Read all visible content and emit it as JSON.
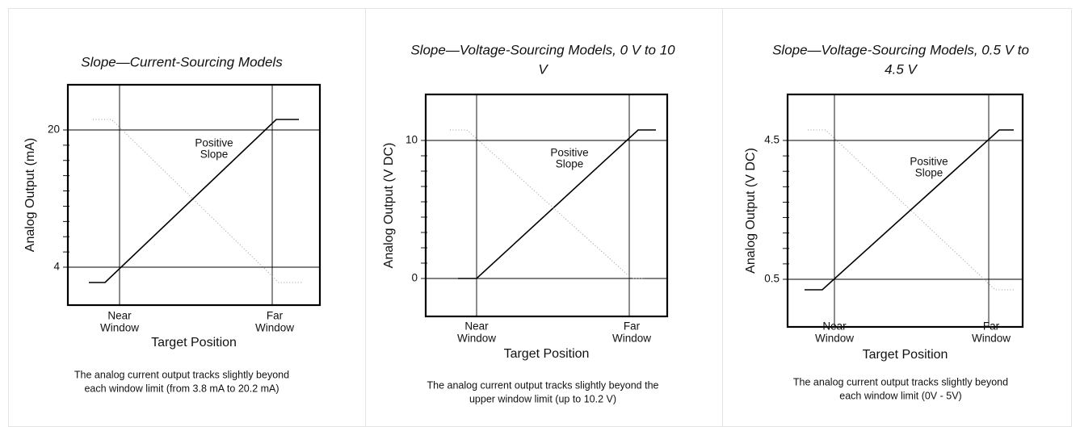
{
  "panels": [
    {
      "title": [
        "Slope—Current-Sourcing Models"
      ],
      "y_axis_label": "Analog Output (mA)",
      "tick_labels": [
        "20",
        "4"
      ],
      "slope_label": [
        "Positive",
        "Slope"
      ],
      "near_label": [
        "Near",
        "Window"
      ],
      "far_label": [
        "Far",
        "Window"
      ],
      "x_axis_label": "Target Position",
      "caption": [
        "The analog current output tracks slightly beyond",
        "each window limit (from 3.8 mA to 20.2 mA)"
      ]
    },
    {
      "title": [
        "Slope—Voltage-Sourcing Models, 0 V to 10",
        "V"
      ],
      "y_axis_label": "Analog Output (V DC)",
      "tick_labels": [
        "10",
        "0"
      ],
      "slope_label": [
        "Positive",
        "Slope"
      ],
      "near_label": [
        "Near",
        "Window"
      ],
      "far_label": [
        "Far",
        "Window"
      ],
      "x_axis_label": "Target Position",
      "caption": [
        "The analog current output tracks slightly beyond the",
        "upper window limit (up to 10.2 V)"
      ]
    },
    {
      "title": [
        "Slope—Voltage-Sourcing Models, 0.5 V to",
        "4.5 V"
      ],
      "y_axis_label": "Analog Output (V DC)",
      "tick_labels": [
        "4.5",
        "0.5"
      ],
      "slope_label": [
        "Positive",
        "Slope"
      ],
      "near_label": [
        "Near",
        "Window"
      ],
      "far_label": [
        "Far",
        "Window"
      ],
      "x_axis_label": "Target Position",
      "caption": [
        "The analog current output tracks slightly beyond",
        "each window limit (0V - 5V)"
      ]
    }
  ]
}
